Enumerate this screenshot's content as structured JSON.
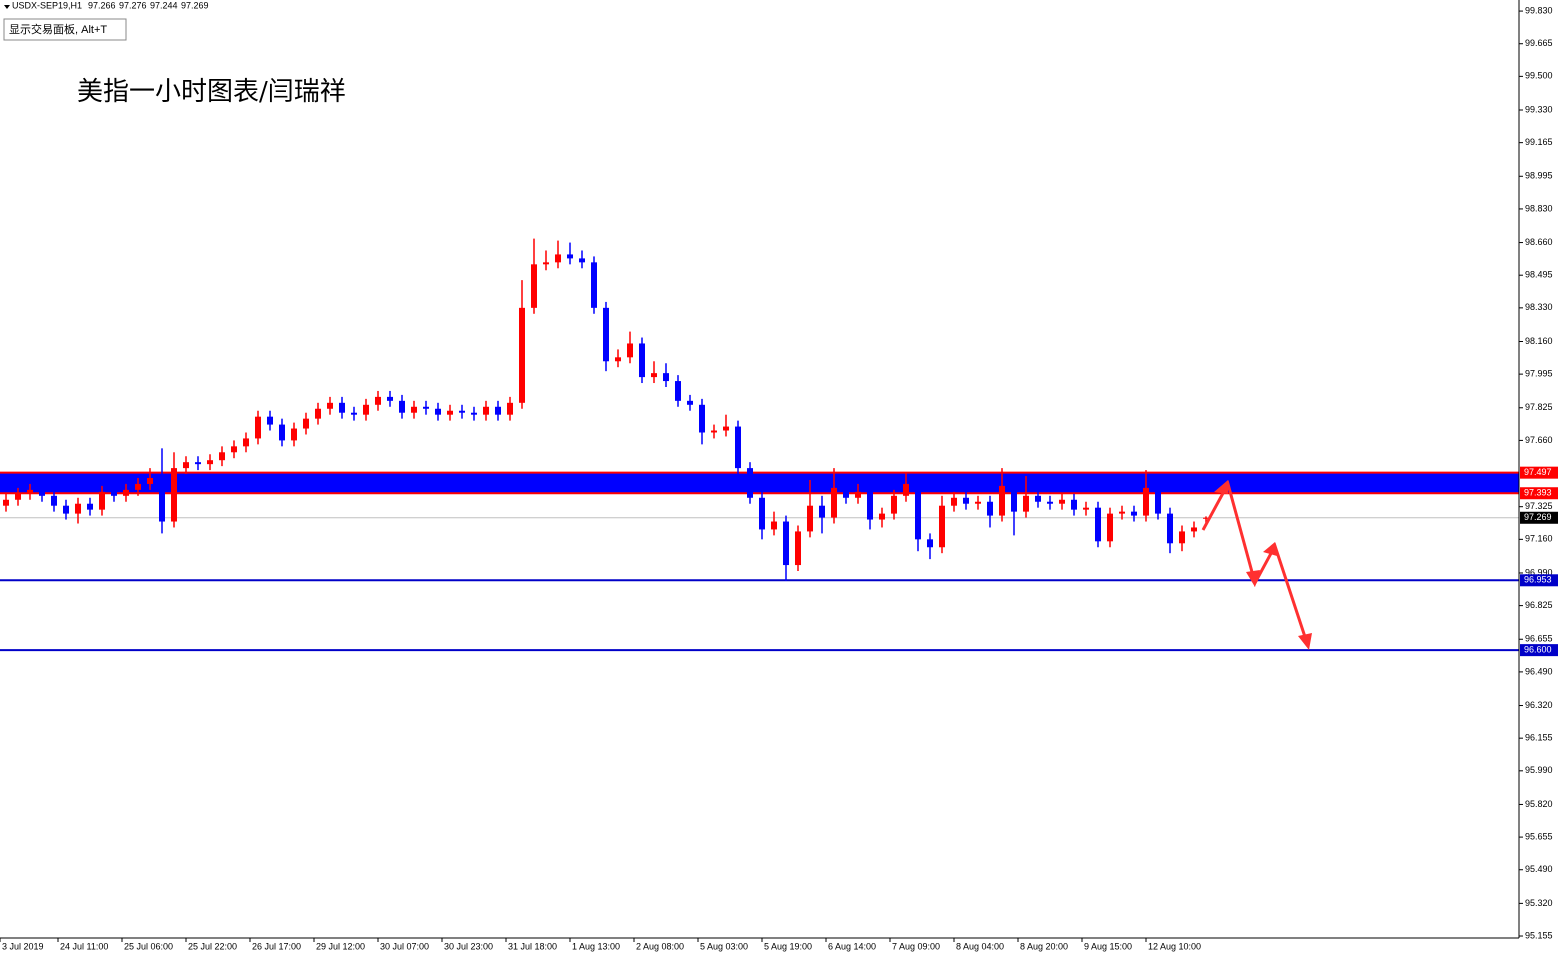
{
  "chart_data": {
    "type": "candlestick",
    "symbol": "USDX-SEP19,H1",
    "panel_button": "显示交易面板, Alt+T",
    "title": "美指一小时图表/闫瑞祥",
    "up_color": "#ff0000",
    "down_color": "#0000ff",
    "xlim": [
      0,
      379.75
    ],
    "xticks": [
      {
        "value": 0,
        "label": "3 Jul 2019"
      },
      {
        "value": 14.5,
        "label": "24 Jul 11:00"
      },
      {
        "value": 30.5,
        "label": "25 Jul 06:00"
      },
      {
        "value": 46.5,
        "label": "25 Jul 22:00"
      },
      {
        "value": 62.5,
        "label": "26 Jul 17:00"
      },
      {
        "value": 78.5,
        "label": "29 Jul 12:00"
      },
      {
        "value": 94.5,
        "label": "30 Jul 07:00"
      },
      {
        "value": 110.5,
        "label": "30 Jul 23:00"
      },
      {
        "value": 126.5,
        "label": "31 Jul 18:00"
      },
      {
        "value": 142.5,
        "label": "1 Aug 13:00"
      },
      {
        "value": 158.5,
        "label": "2 Aug 08:00"
      },
      {
        "value": 174.5,
        "label": "5 Aug 03:00"
      },
      {
        "value": 190.5,
        "label": "5 Aug 19:00"
      },
      {
        "value": 206.5,
        "label": "6 Aug 14:00"
      },
      {
        "value": 222.5,
        "label": "7 Aug 09:00"
      },
      {
        "value": 238.5,
        "label": "8 Aug 04:00"
      },
      {
        "value": 254.5,
        "label": "8 Aug 20:00"
      },
      {
        "value": 270.5,
        "label": "9 Aug 15:00"
      },
      {
        "value": 286.5,
        "label": "12 Aug 10:00"
      }
    ],
    "ylim": [
      95.145,
      99.886
    ],
    "yticks": [
      {
        "value": 99.83,
        "label": "99.830"
      },
      99.665,
      {
        "value": 99.5,
        "label": "99.500"
      },
      {
        "value": 99.33,
        "label": "99.330"
      },
      99.165,
      98.995,
      {
        "value": 98.83,
        "label": "98.830"
      },
      {
        "value": 98.66,
        "label": "98.660"
      },
      98.495,
      {
        "value": 98.33,
        "label": "98.330"
      },
      {
        "value": 98.16,
        "label": "98.160"
      },
      97.995,
      97.825,
      {
        "value": 97.66,
        "label": "97.660"
      },
      97.325,
      {
        "value": 97.16,
        "label": "97.160"
      },
      {
        "value": 96.99,
        "label": "96.990"
      },
      96.825,
      96.655,
      {
        "value": 96.49,
        "label": "96.490"
      },
      {
        "value": 96.32,
        "label": "96.320"
      },
      96.155,
      {
        "value": 95.99,
        "label": "95.990"
      },
      {
        "value": 95.82,
        "label": "95.820"
      },
      95.655,
      {
        "value": 95.49,
        "label": "95.490"
      },
      {
        "value": 95.32,
        "label": "95.320"
      },
      95.155
    ],
    "zone": {
      "top": 97.497,
      "bottom": 97.393,
      "fill": "#0000ff",
      "edge": "#ff0000"
    },
    "lines": [
      {
        "value": 96.953,
        "color": "#0000c8"
      },
      {
        "value": {
          "value": 96.6,
          "label": "96.600"
        },
        "color": "#0000c8"
      }
    ],
    "x": [
      1.5,
      4.5,
      7.5,
      10.5,
      13.5,
      16.5,
      19.5,
      22.5,
      25.5,
      28.5,
      31.5,
      34.5,
      37.5,
      40.5,
      43.5,
      46.5,
      49.5,
      52.5,
      55.5,
      58.5,
      61.5,
      64.5,
      67.5,
      70.5,
      73.5,
      76.5,
      79.5,
      82.5,
      85.5,
      88.5,
      91.5,
      94.5,
      97.5,
      100.5,
      103.5,
      106.5,
      109.5,
      112.5,
      115.5,
      118.5,
      121.5,
      124.5,
      127.5,
      130.5,
      133.5,
      136.5,
      139.5,
      142.5,
      145.5,
      148.5,
      151.5,
      154.5,
      157.5,
      160.5,
      163.5,
      166.5,
      169.5,
      172.5,
      175.5,
      178.5,
      181.5,
      184.5,
      187.5,
      190.5,
      193.5,
      196.5,
      199.5,
      202.5,
      205.5,
      208.5,
      211.5,
      214.5,
      217.5,
      220.5,
      223.5,
      226.5,
      229.5,
      232.5,
      235.5,
      238.5,
      241.5,
      244.5,
      247.5,
      250.5,
      253.5,
      256.5,
      259.5,
      262.5,
      265.5,
      268.5,
      271.5,
      274.5,
      277.5,
      280.5,
      283.5,
      286.5,
      289.5,
      292.5,
      295.5,
      298.5,
      301.5
    ],
    "open": [
      97.33,
      97.36,
      97.39,
      97.41,
      97.38,
      97.33,
      97.29,
      97.34,
      97.31,
      97.4,
      97.38,
      97.41,
      97.44,
      97.47,
      97.25,
      97.52,
      97.55,
      97.54,
      97.56,
      97.6,
      97.63,
      97.67,
      97.78,
      97.74,
      97.66,
      97.72,
      97.77,
      97.82,
      97.85,
      97.8,
      97.79,
      97.84,
      97.88,
      97.86,
      97.8,
      97.83,
      97.82,
      97.79,
      97.81,
      97.8,
      97.79,
      97.83,
      97.79,
      97.85,
      98.33,
      98.55,
      98.56,
      98.6,
      98.58,
      98.56,
      98.33,
      98.06,
      98.08,
      98.15,
      97.98,
      98,
      97.96,
      97.86,
      97.84,
      97.7,
      97.71,
      97.73,
      97.52,
      97.37,
      97.21,
      97.25,
      97.03,
      97.2,
      97.33,
      97.27,
      97.42,
      97.37,
      97.4,
      97.26,
      97.29,
      97.38,
      97.44,
      97.16,
      97.12,
      97.33,
      97.37,
      97.34,
      97.35,
      97.28,
      97.43,
      97.3,
      97.38,
      97.35,
      97.34,
      97.36,
      97.31,
      97.32,
      97.15,
      97.29,
      97.3,
      97.28,
      97.42,
      97.29,
      97.14,
      97.2,
      97.266
    ],
    "high": [
      97.39,
      97.42,
      97.44,
      97.44,
      97.41,
      97.36,
      97.37,
      97.37,
      97.43,
      97.43,
      97.44,
      97.47,
      97.52,
      97.62,
      97.6,
      97.58,
      97.58,
      97.59,
      97.63,
      97.66,
      97.7,
      97.81,
      97.81,
      97.77,
      97.75,
      97.8,
      97.85,
      97.88,
      97.88,
      97.83,
      97.87,
      97.91,
      97.91,
      97.89,
      97.86,
      97.86,
      97.85,
      97.84,
      97.84,
      97.83,
      97.86,
      97.86,
      97.88,
      98.47,
      98.68,
      98.62,
      98.67,
      98.66,
      98.62,
      98.59,
      98.36,
      98.12,
      98.21,
      98.18,
      98.06,
      98.05,
      97.99,
      97.89,
      97.87,
      97.74,
      97.79,
      97.76,
      97.55,
      97.4,
      97.3,
      97.28,
      97.23,
      97.46,
      97.38,
      97.52,
      97.45,
      97.44,
      97.43,
      97.32,
      97.41,
      97.5,
      97.47,
      97.19,
      97.38,
      97.4,
      97.4,
      97.38,
      97.38,
      97.52,
      97.46,
      97.48,
      97.41,
      97.38,
      97.39,
      97.39,
      97.35,
      97.35,
      97.32,
      97.33,
      97.33,
      97.51,
      97.45,
      97.32,
      97.23,
      97.25,
      97.276
    ],
    "low": [
      97.3,
      97.33,
      97.36,
      97.35,
      97.3,
      97.26,
      97.24,
      97.28,
      97.28,
      97.35,
      97.35,
      97.38,
      97.41,
      97.19,
      97.22,
      97.49,
      97.51,
      97.51,
      97.53,
      97.57,
      97.6,
      97.64,
      97.71,
      97.63,
      97.63,
      97.69,
      97.74,
      97.79,
      97.77,
      97.76,
      97.76,
      97.81,
      97.83,
      97.77,
      97.77,
      97.79,
      97.76,
      97.76,
      97.77,
      97.76,
      97.76,
      97.76,
      97.76,
      97.82,
      98.3,
      98.52,
      98.53,
      98.55,
      98.53,
      98.3,
      98.01,
      98.03,
      98.05,
      97.95,
      97.95,
      97.93,
      97.83,
      97.81,
      97.64,
      97.67,
      97.68,
      97.49,
      97.34,
      97.16,
      97.18,
      96.95,
      97,
      97.17,
      97.19,
      97.24,
      97.34,
      97.34,
      97.21,
      97.22,
      97.26,
      97.35,
      97.1,
      97.06,
      97.09,
      97.3,
      97.31,
      97.31,
      97.22,
      97.25,
      97.18,
      97.27,
      97.32,
      97.31,
      97.31,
      97.28,
      97.28,
      97.12,
      97.12,
      97.26,
      97.25,
      97.25,
      97.26,
      97.09,
      97.1,
      97.17,
      97.244
    ],
    "close": [
      97.36,
      97.39,
      97.41,
      97.38,
      97.33,
      97.29,
      97.34,
      97.31,
      97.4,
      97.38,
      97.41,
      97.44,
      97.47,
      97.25,
      97.52,
      97.55,
      97.54,
      97.56,
      97.6,
      97.63,
      97.67,
      97.78,
      97.74,
      97.66,
      97.72,
      97.77,
      97.82,
      97.85,
      97.8,
      97.79,
      97.84,
      97.88,
      97.86,
      97.8,
      97.83,
      97.82,
      97.79,
      97.81,
      97.8,
      97.79,
      97.83,
      97.79,
      97.85,
      98.33,
      98.55,
      98.56,
      98.6,
      98.58,
      98.56,
      98.33,
      98.06,
      98.08,
      98.15,
      97.98,
      98,
      97.96,
      97.86,
      97.84,
      97.7,
      97.71,
      97.73,
      97.52,
      97.37,
      97.21,
      97.25,
      97.03,
      97.2,
      97.33,
      97.27,
      97.42,
      97.37,
      97.4,
      97.26,
      97.29,
      97.38,
      97.44,
      97.16,
      97.12,
      97.33,
      97.37,
      97.34,
      97.35,
      97.28,
      97.43,
      97.3,
      97.38,
      97.35,
      97.34,
      97.36,
      97.31,
      97.32,
      97.15,
      97.29,
      97.3,
      97.28,
      97.42,
      97.29,
      97.14,
      97.2,
      97.22,
      97.269
    ]
  }
}
